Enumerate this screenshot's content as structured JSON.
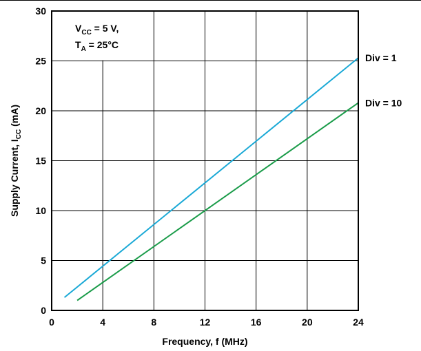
{
  "chart_data": {
    "type": "line",
    "xlabel": "Frequency, f (MHz)",
    "ylabel_main": "Supply Current, I",
    "ylabel_sub": "CC",
    "ylabel_unit": " (mA)",
    "xlim": [
      0,
      24
    ],
    "ylim": [
      0,
      30
    ],
    "xticks": [
      0,
      4,
      8,
      12,
      16,
      20,
      24
    ],
    "yticks": [
      0,
      5,
      10,
      15,
      20,
      25,
      30
    ],
    "grid": true,
    "annotation": {
      "line1_main": "V",
      "line1_sub": "CC",
      "line1_rest": " = 5 V,",
      "line2_main": "T",
      "line2_sub": "A",
      "line2_rest": " = 25°C"
    },
    "series": [
      {
        "name": "Div = 1",
        "color": "#1aa9d6",
        "x": [
          1,
          24
        ],
        "y": [
          1.3,
          25.3
        ]
      },
      {
        "name": "Div = 10",
        "color": "#1b9c4a",
        "x": [
          2,
          24
        ],
        "y": [
          1.0,
          20.8
        ]
      }
    ]
  }
}
